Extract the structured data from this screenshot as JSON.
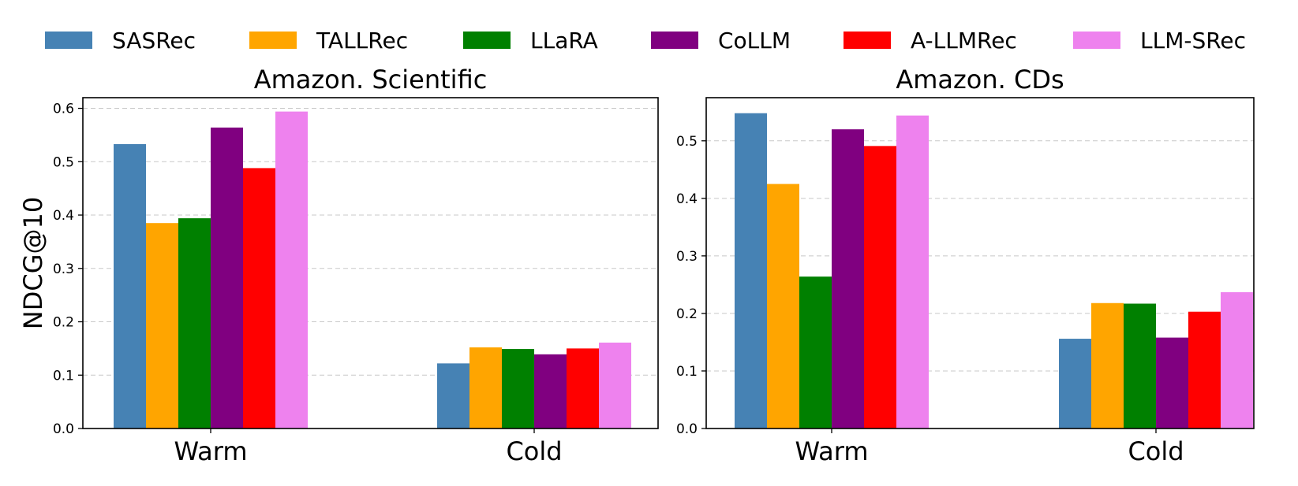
{
  "chart_data": {
    "type": "bar",
    "ylabel": "NDCG@10",
    "legend": {
      "placement": "top",
      "columns": 6
    },
    "series": [
      {
        "name": "SASRec",
        "color": "#4682B4"
      },
      {
        "name": "TALLRec",
        "color": "#FFA500"
      },
      {
        "name": "LLaRA",
        "color": "#008000"
      },
      {
        "name": "CoLLM",
        "color": "#800080"
      },
      {
        "name": "A-LLMRec",
        "color": "#FF0000"
      },
      {
        "name": "LLM-SRec",
        "color": "#EE82EE"
      }
    ],
    "panels": [
      {
        "title": "Amazon. Scientific",
        "categories": [
          "Warm",
          "Cold"
        ],
        "ylim": [
          0,
          0.62
        ],
        "yticks": [
          0.0,
          0.1,
          0.2,
          0.3,
          0.4,
          0.5,
          0.6
        ],
        "grid": true,
        "values": [
          [
            0.533,
            0.122
          ],
          [
            0.385,
            0.152
          ],
          [
            0.394,
            0.149
          ],
          [
            0.564,
            0.139
          ],
          [
            0.488,
            0.15
          ],
          [
            0.594,
            0.161
          ]
        ]
      },
      {
        "title": "Amazon. CDs",
        "categories": [
          "Warm",
          "Cold"
        ],
        "ylim": [
          0,
          0.575
        ],
        "yticks": [
          0.0,
          0.1,
          0.2,
          0.3,
          0.4,
          0.5
        ],
        "grid": true,
        "values": [
          [
            0.548,
            0.156
          ],
          [
            0.425,
            0.218
          ],
          [
            0.264,
            0.217
          ],
          [
            0.52,
            0.158
          ],
          [
            0.491,
            0.203
          ],
          [
            0.544,
            0.237
          ]
        ]
      }
    ]
  }
}
